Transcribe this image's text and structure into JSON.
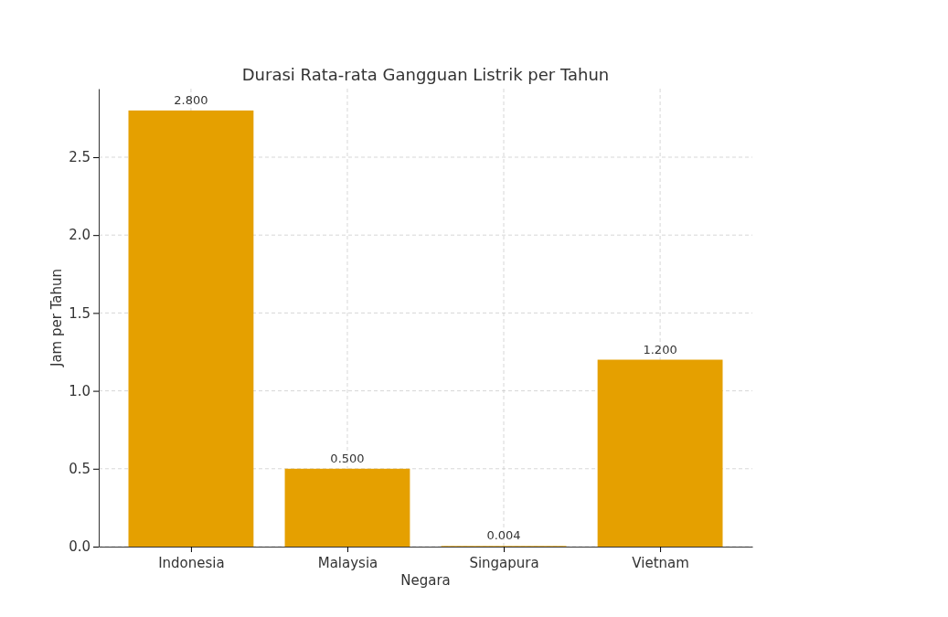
{
  "chart_data": {
    "type": "bar",
    "title": "Durasi Rata-rata Gangguan Listrik per Tahun",
    "xlabel": "Negara",
    "ylabel": "Jam per Tahun",
    "categories": [
      "Indonesia",
      "Malaysia",
      "Singapura",
      "Vietnam"
    ],
    "values": [
      2.8,
      0.5,
      0.004,
      1.2
    ],
    "value_labels": [
      "2.800",
      "0.500",
      "0.004",
      "1.200"
    ],
    "color": "#e5a000",
    "ylim": [
      0,
      2.94
    ],
    "yticks": [
      {
        "value": 0,
        "label": "0.0"
      },
      {
        "value": 0.5,
        "label": "0.5"
      },
      {
        "value": 1,
        "label": "1.0"
      },
      {
        "value": 1.5,
        "label": "1.5"
      },
      {
        "value": 2,
        "label": "2.0"
      },
      {
        "value": 2.5,
        "label": "2.5"
      }
    ],
    "grid": true
  }
}
